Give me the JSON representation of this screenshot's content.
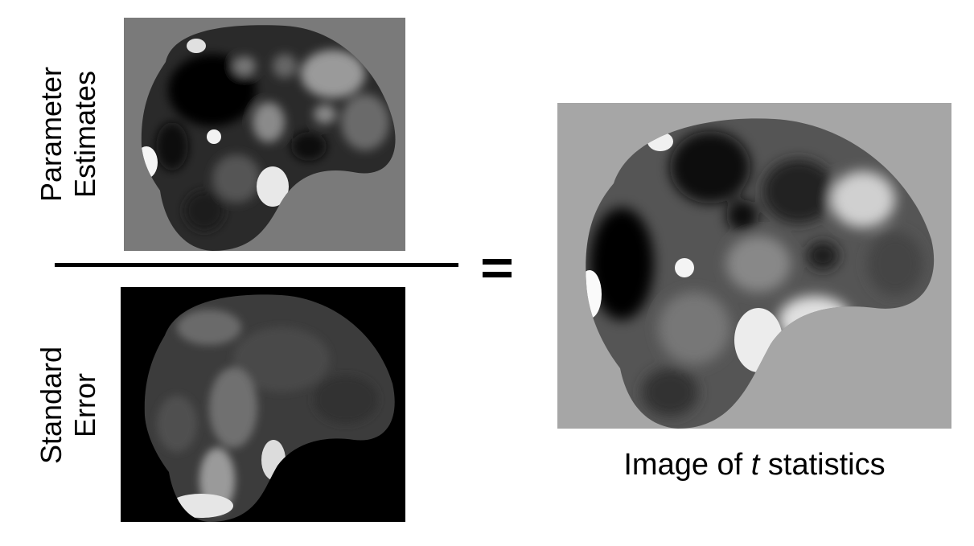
{
  "colors": {
    "background": "#ffffff",
    "text": "#000000",
    "estimate_background": "#7a7a7a",
    "stderr_background": "#000000",
    "tstat_background": "#a6a6a6"
  },
  "labels": {
    "parameter_estimates": [
      "Parameter",
      "Estimates"
    ],
    "standard_error": [
      "Standard",
      "Error"
    ]
  },
  "operators": {
    "equals": "="
  },
  "caption": {
    "before": "Image of ",
    "variable": "t",
    "after": " statistics"
  },
  "images": {
    "parameter_estimates": "brain-parameter-estimate-map",
    "standard_error": "brain-standard-error-map",
    "t_statistics": "brain-t-statistic-map"
  }
}
